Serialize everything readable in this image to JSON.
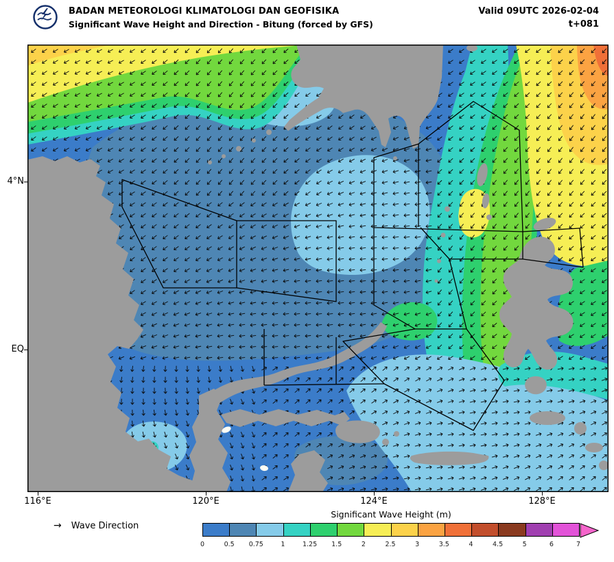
{
  "header": {
    "org": "BADAN METEOROLOGI KLIMATOLOGI DAN GEOFISIKA",
    "product": "Significant Wave Height and Direction - Bitung (forced by GFS)",
    "valid_label": "Valid 09UTC 2026-02-04",
    "lead_label": "t+081",
    "logo_text": "BMKG"
  },
  "map": {
    "y_axis_labels": [
      "4°N",
      "EQ"
    ],
    "x_axis_labels": [
      "116°E",
      "120°E",
      "124°E",
      "128°E"
    ],
    "sea_base_color": "#3b7cc9",
    "land_color": "#9c9c9c",
    "white_island_color": "#fdfdf5",
    "arrow_color": "#0a0a0a",
    "zone_border_color": "#000000",
    "border_color": "#000000"
  },
  "legend": {
    "wave_direction_glyph": "→",
    "wave_direction_label": "Wave Direction",
    "colorbar_title": "Significant Wave Height (m)",
    "tick_labels": [
      "0",
      "0.5",
      "0.75",
      "1",
      "1.25",
      "1.5",
      "2",
      "2.5",
      "3",
      "3.5",
      "4",
      "4.5",
      "5",
      "6",
      "7"
    ],
    "segment_colors": [
      "#3b7cc9",
      "#4e86b4",
      "#85cbe9",
      "#35d2c3",
      "#2ed06e",
      "#72d83e",
      "#f6ee55",
      "#fcd24a",
      "#fba342",
      "#f07038",
      "#c24e2c",
      "#8a3a1f",
      "#a03fb0",
      "#e253d8"
    ],
    "overflow_color": "#f565cb"
  }
}
